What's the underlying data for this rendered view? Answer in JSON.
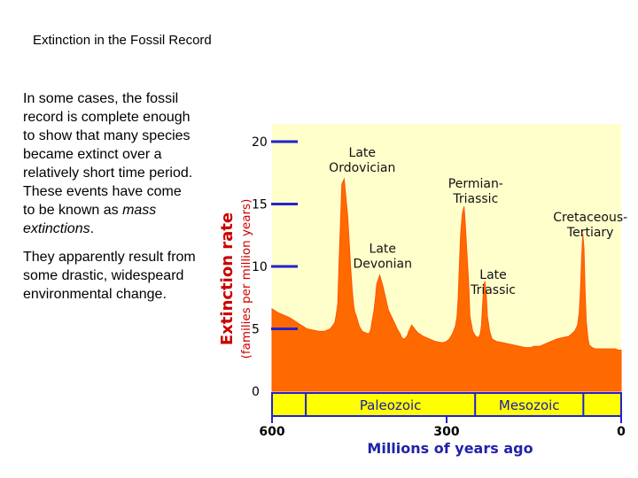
{
  "slide": {
    "title": "Extinction in the Fossil Record",
    "paragraph1_text": "In some cases, the fossil record is complete enough to show that many species became extinct over a relatively short time period. These events have come to be known as",
    "paragraph1_emph": "mass extinctions",
    "paragraph1_end": ".",
    "paragraph2": "They apparently result from some drastic, widespeard environmental change."
  },
  "chart_data": {
    "type": "area",
    "ylabel": "Extinction rate",
    "ylabel_units": "(families per million years)",
    "xlabel": "Millions of years ago",
    "x_reversed": true,
    "xlim": [
      600,
      0
    ],
    "ylim": [
      0,
      20
    ],
    "y_ticks": [
      0,
      5,
      10,
      15,
      20
    ],
    "x_ticks": [
      {
        "value": 600,
        "label": "600"
      },
      {
        "value": 300,
        "label": "300"
      },
      {
        "value": 0,
        "label": "0"
      }
    ],
    "series": [
      {
        "x": [
          600,
          590,
          580,
          570,
          560,
          550,
          540,
          530,
          520,
          510,
          505,
          500,
          495,
          492,
          490,
          487,
          485,
          482,
          480,
          476,
          470,
          465,
          462,
          460,
          458,
          455,
          452,
          450,
          445,
          440,
          435,
          432,
          430,
          428,
          425,
          422,
          420,
          415,
          410,
          405,
          400,
          390,
          385,
          380,
          377,
          375,
          372,
          370,
          367,
          365,
          360,
          355,
          350,
          340,
          330,
          320,
          310,
          305,
          300,
          295,
          290,
          285,
          282,
          280,
          278,
          276,
          273,
          270,
          268,
          265,
          262,
          260,
          255,
          250,
          245,
          242,
          240,
          238,
          236,
          234,
          232,
          230,
          226,
          222,
          215,
          205,
          195,
          185,
          175,
          165,
          160,
          155,
          150,
          145,
          140,
          135,
          130,
          125,
          120,
          110,
          100,
          90,
          85,
          80,
          75,
          72,
          70,
          68,
          66,
          64,
          62,
          60,
          57,
          55,
          50,
          45,
          40,
          35,
          30,
          25,
          20,
          15,
          10,
          5,
          0
        ],
        "values": [
          6.6,
          6.3,
          6.1,
          5.9,
          5.6,
          5.3,
          5.0,
          4.9,
          4.8,
          4.8,
          4.9,
          5.0,
          5.3,
          5.5,
          6.0,
          7.0,
          10.0,
          14.0,
          16.6,
          17.0,
          14.0,
          10.0,
          8.0,
          7.0,
          6.4,
          6.0,
          5.5,
          5.2,
          4.8,
          4.7,
          4.6,
          4.7,
          5.0,
          5.6,
          6.4,
          7.6,
          8.6,
          9.3,
          8.5,
          7.5,
          6.5,
          5.5,
          5.0,
          4.6,
          4.3,
          4.2,
          4.2,
          4.3,
          4.5,
          4.8,
          5.3,
          5.0,
          4.7,
          4.4,
          4.2,
          4.0,
          3.9,
          3.9,
          4.0,
          4.2,
          4.6,
          5.2,
          6.0,
          7.5,
          10.0,
          12.5,
          14.2,
          14.8,
          13.5,
          11.0,
          8.5,
          6.0,
          4.8,
          4.4,
          4.3,
          4.6,
          5.3,
          7.0,
          8.5,
          8.8,
          7.8,
          6.0,
          4.8,
          4.2,
          4.0,
          3.9,
          3.8,
          3.7,
          3.6,
          3.5,
          3.5,
          3.5,
          3.6,
          3.6,
          3.6,
          3.7,
          3.8,
          3.9,
          4.0,
          4.2,
          4.3,
          4.4,
          4.6,
          4.8,
          5.3,
          6.3,
          8.0,
          10.5,
          12.6,
          11.5,
          8.0,
          5.6,
          4.2,
          3.7,
          3.5,
          3.4,
          3.4,
          3.4,
          3.4,
          3.4,
          3.4,
          3.4,
          3.4,
          3.3,
          3.3
        ]
      }
    ],
    "annotations": [
      {
        "lines": [
          "Late",
          "Ordovician"
        ],
        "x": 445,
        "y": 18.8
      },
      {
        "lines": [
          "Permian-",
          "Triassic"
        ],
        "x": 250,
        "y": 16.3
      },
      {
        "lines": [
          "Cretaceous-",
          "Tertiary"
        ],
        "x": 53,
        "y": 13.6
      },
      {
        "lines": [
          "Late",
          "Devonian"
        ],
        "x": 410,
        "y": 11.1
      },
      {
        "lines": [
          "Late",
          "Triassic"
        ],
        "x": 220,
        "y": 9.0
      }
    ],
    "eras": [
      {
        "label": "Paleozoic",
        "from": 542,
        "to": 251
      },
      {
        "label": "Mesozoic",
        "from": 251,
        "to": 65
      }
    ],
    "colors": {
      "plot_bg": "#ffffcc",
      "fill": "#ff6a00",
      "fill_outline": "#ff5500",
      "axis": "#2222cc",
      "era_bar": "#ffff00",
      "era_text": "#1a1aaa",
      "ylabel": "#cc0000",
      "ylabel_units": "#cc0000",
      "xlabel": "#2222aa"
    }
  }
}
